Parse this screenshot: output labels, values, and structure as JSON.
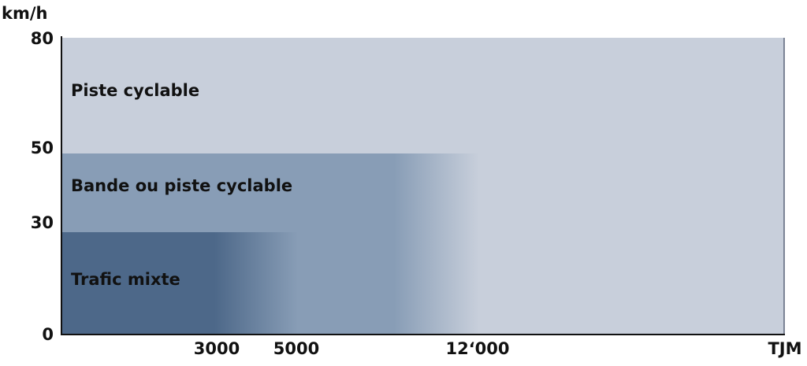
{
  "y_axis": {
    "label": "km/h",
    "ticks": [
      "80",
      "50",
      "30",
      "0"
    ]
  },
  "x_axis": {
    "label": "TJM",
    "ticks": [
      "3000",
      "5000",
      "12‘000"
    ]
  },
  "zones": [
    {
      "label": "Piste cyclable"
    },
    {
      "label": "Bande ou piste cyclable"
    },
    {
      "label": "Trafic mixte"
    }
  ]
}
